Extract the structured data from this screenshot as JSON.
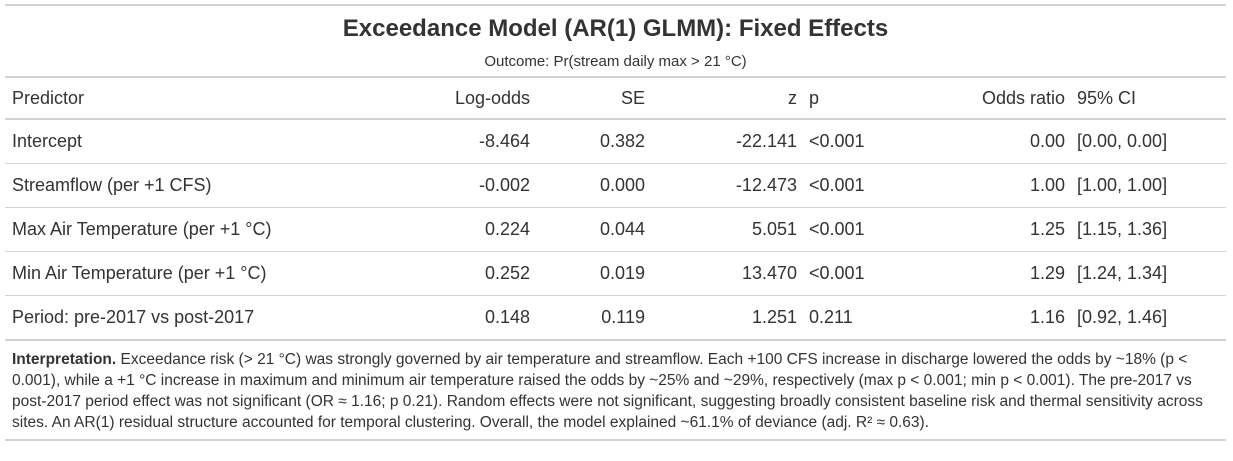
{
  "table": {
    "title": "Exceedance Model (AR(1) GLMM): Fixed Effects",
    "subtitle": "Outcome: Pr(stream daily max > 21 °C)",
    "columns": [
      "Predictor",
      "Log-odds",
      "SE",
      "z",
      "p",
      "Odds ratio",
      "95% CI"
    ],
    "rows": [
      {
        "predictor": "Intercept",
        "log_odds": "-8.464",
        "se": "0.382",
        "z": "-22.141",
        "p": "<0.001",
        "odds_ratio": "0.00",
        "ci": "[0.00, 0.00]"
      },
      {
        "predictor": "Streamflow (per +1 CFS)",
        "log_odds": "-0.002",
        "se": "0.000",
        "z": "-12.473",
        "p": "<0.001",
        "odds_ratio": "1.00",
        "ci": "[1.00, 1.00]"
      },
      {
        "predictor": "Max Air Temperature (per +1 °C)",
        "log_odds": "0.224",
        "se": "0.044",
        "z": "5.051",
        "p": "<0.001",
        "odds_ratio": "1.25",
        "ci": "[1.15, 1.36]"
      },
      {
        "predictor": "Min Air Temperature (per +1 °C)",
        "log_odds": "0.252",
        "se": "0.019",
        "z": "13.470",
        "p": "<0.001",
        "odds_ratio": "1.29",
        "ci": "[1.24, 1.34]"
      },
      {
        "predictor": "Period: pre-2017 vs post-2017",
        "log_odds": "0.148",
        "se": "0.119",
        "z": "1.251",
        "p": "0.211",
        "odds_ratio": "1.16",
        "ci": "[0.92, 1.46]"
      }
    ]
  },
  "interpretation": {
    "label": "Interpretation.",
    "text": "Exceedance risk (> 21 °C) was strongly governed by air temperature and streamflow. Each +100 CFS increase in discharge lowered the odds by ~18% (p < 0.001), while a +1 °C increase in maximum and minimum air temperature raised the odds by ~25% and ~29%, respectively (max p < 0.001; min p < 0.001). The pre-2017 vs post-2017 period effect was not significant (OR ≈ 1.16; p 0.21). Random effects were not significant, suggesting broadly consistent baseline risk and thermal sensitivity across sites. An AR(1) residual structure accounted for temporal clustering. Overall, the model explained ~61.1% of deviance (adj. R² ≈ 0.63)."
  }
}
